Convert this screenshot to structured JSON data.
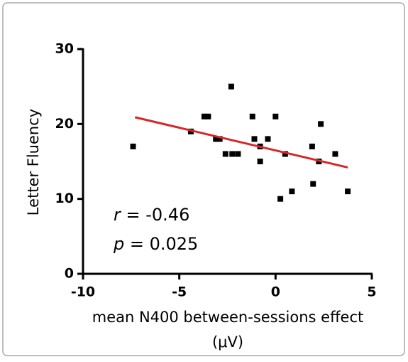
{
  "chart_data": {
    "type": "scatter",
    "xlabel": [
      "mean N400 between-sessions effect",
      "(μV)"
    ],
    "ylabel": "Letter Fluency",
    "x": [
      -7.4,
      -4.4,
      -3.7,
      -3.5,
      -2.3,
      -3.1,
      -2.9,
      -2.6,
      -2.25,
      -1.95,
      -1.2,
      -1.1,
      -0.8,
      -0.8,
      -0.4,
      0.0,
      0.5,
      0.25,
      0.85,
      1.9,
      1.95,
      2.25,
      2.35,
      3.1,
      3.75
    ],
    "values": [
      17,
      19,
      21,
      21,
      25,
      18,
      18,
      16,
      16,
      16,
      21,
      18,
      17,
      15,
      18,
      21,
      16,
      10,
      11,
      17,
      12,
      15,
      20,
      16,
      11
    ],
    "color": "#000000",
    "fit": {
      "x": [
        -7.3,
        3.75
      ],
      "values": [
        20.9,
        14.2
      ],
      "color": "#d62728"
    },
    "annotations": [
      {
        "symbol": "r",
        "text": " = -0.46"
      },
      {
        "symbol": "p",
        "text": " = 0.025"
      }
    ],
    "xlim": [
      -10,
      5
    ],
    "xticks": [
      -10,
      -5,
      0,
      5
    ],
    "ylim": [
      0,
      30
    ],
    "yticks": [
      0,
      10,
      20,
      30
    ]
  }
}
